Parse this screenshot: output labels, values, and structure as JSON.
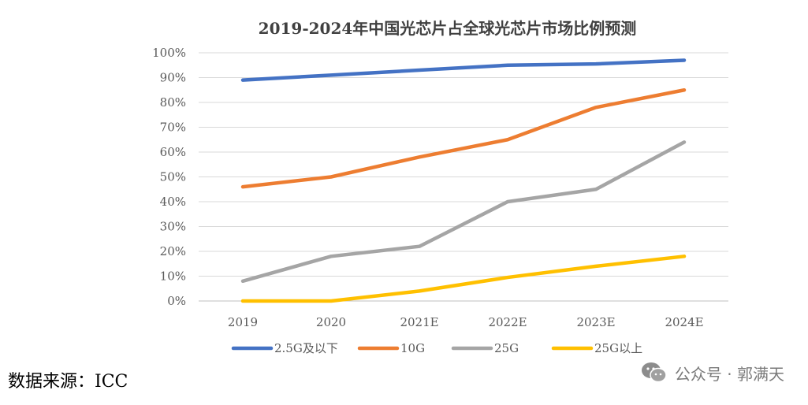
{
  "chart_data": {
    "type": "line",
    "title": "2019-2024年中国光芯片占全球光芯片市场比例预测",
    "categories": [
      "2019",
      "2020",
      "2021E",
      "2022E",
      "2023E",
      "2024E"
    ],
    "ylim": [
      0,
      100
    ],
    "y_ticks": [
      "0%",
      "10%",
      "20%",
      "30%",
      "40%",
      "50%",
      "60%",
      "70%",
      "80%",
      "90%",
      "100%"
    ],
    "grid": true,
    "legend_position": "bottom",
    "series": [
      {
        "name": "2.5G及以下",
        "color": "#4472C4",
        "values": [
          89,
          91,
          93,
          95,
          95.5,
          97
        ]
      },
      {
        "name": "10G",
        "color": "#ED7D31",
        "values": [
          46,
          50,
          58,
          65,
          78,
          85
        ]
      },
      {
        "name": "25G",
        "color": "#A5A5A5",
        "values": [
          8,
          18,
          22,
          40,
          45,
          64
        ]
      },
      {
        "name": "25G以上",
        "color": "#FFC000",
        "values": [
          0,
          0,
          4,
          9.5,
          14,
          18
        ]
      }
    ]
  },
  "source": "数据来源：ICC",
  "watermark": {
    "text": "公众号 · 郭满天",
    "icon": "wechat-icon"
  }
}
